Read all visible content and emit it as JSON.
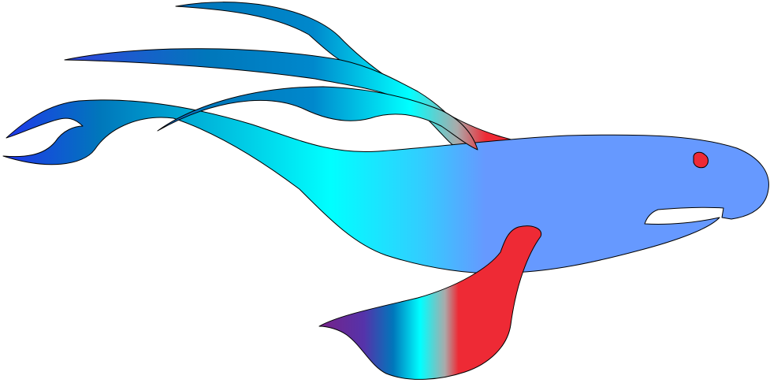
{
  "illustration": {
    "subject": "stylized-fish",
    "palette": {
      "background": "#ffffff",
      "outline": "#000000",
      "body_blue": "#6699ff",
      "accent_red": "#ee2a35",
      "cyan": "#00ffff",
      "mid_blue": "#0077bb",
      "deep_blue": "#2233ee",
      "purple": "#772288"
    }
  }
}
